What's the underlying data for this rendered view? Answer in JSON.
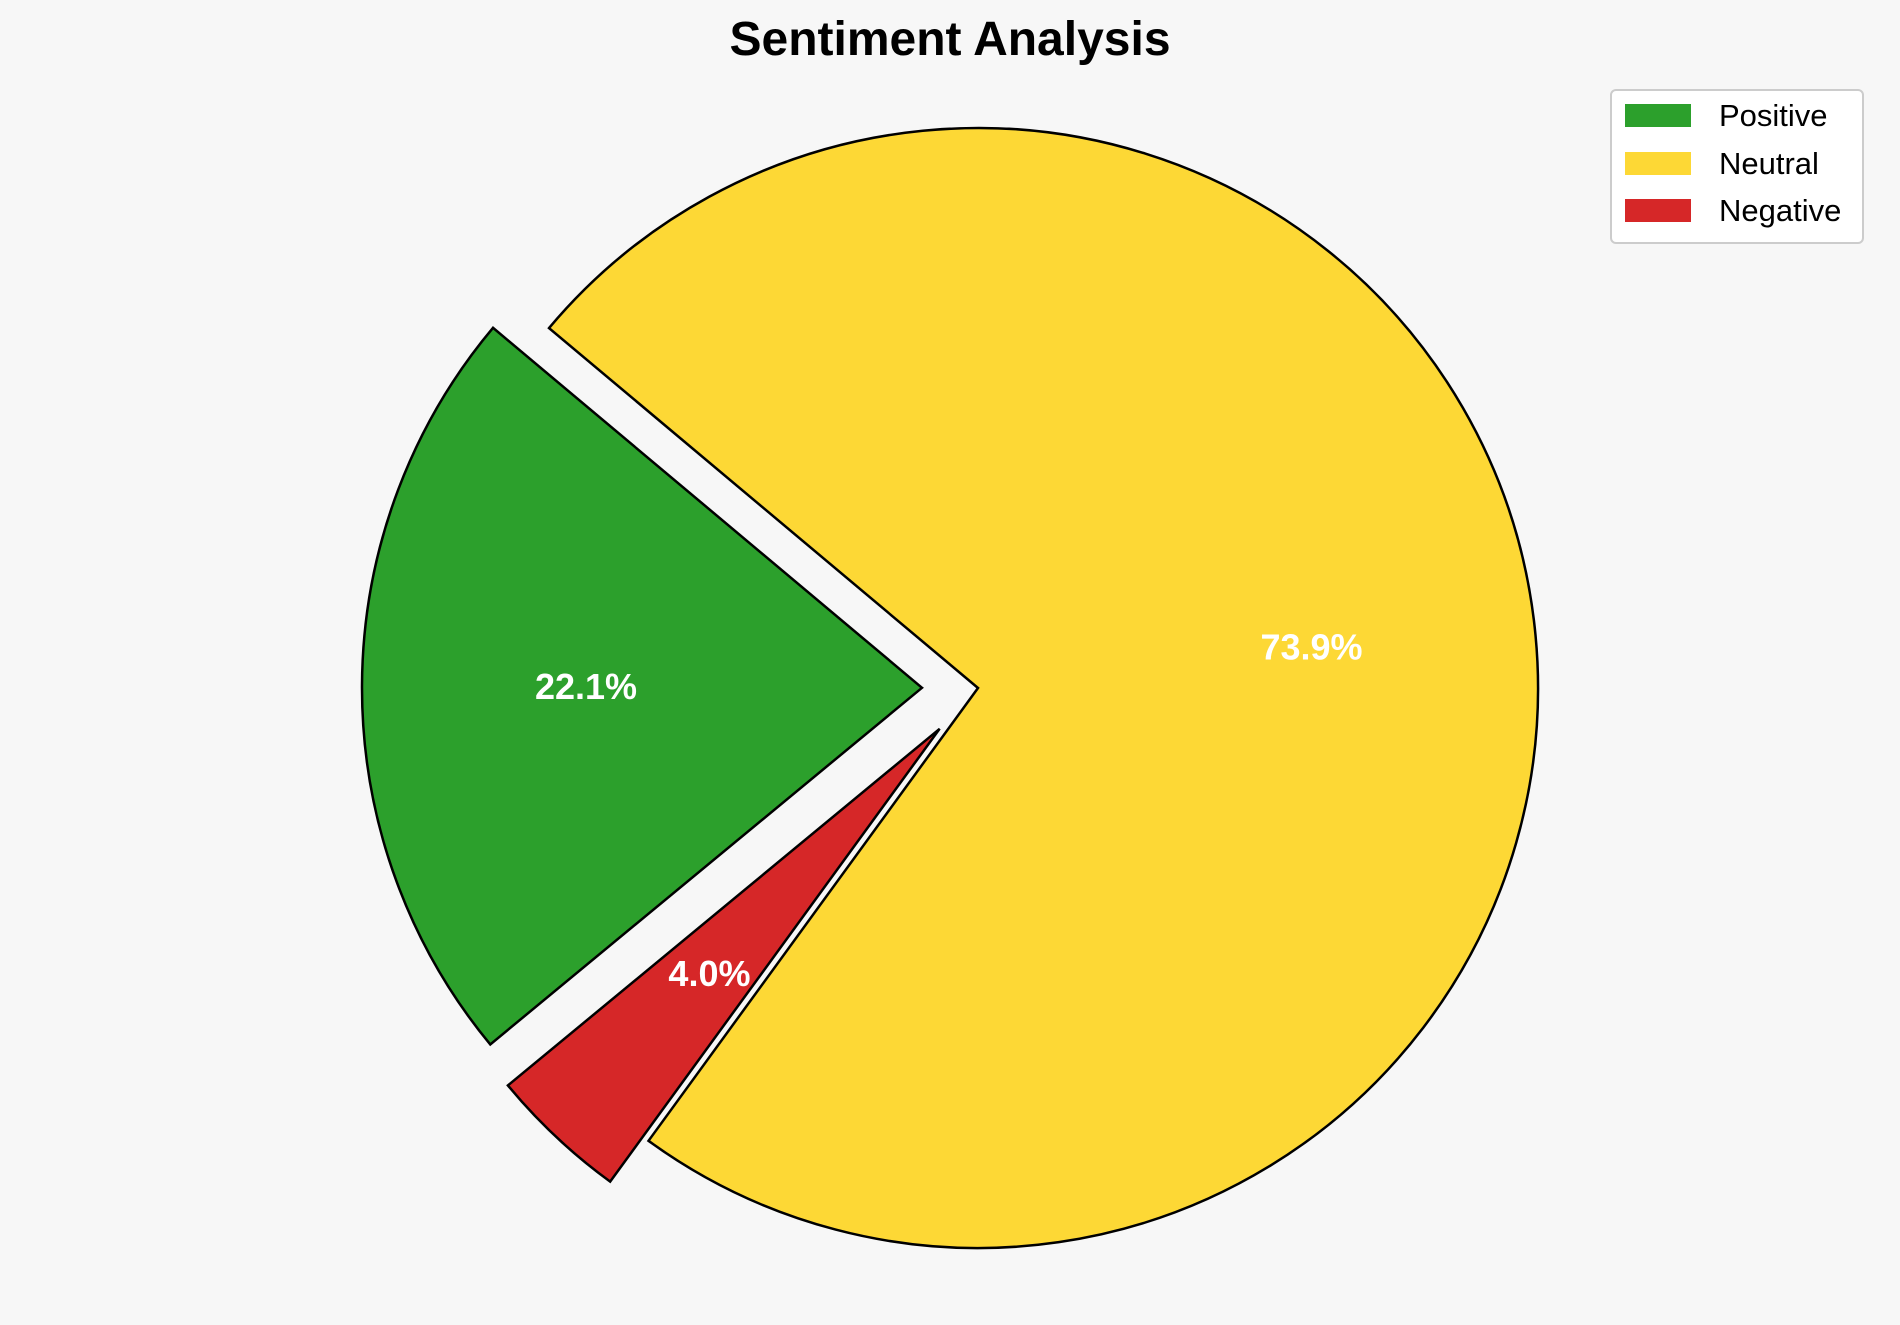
{
  "chart_data": {
    "type": "pie",
    "title": "Sentiment Analysis",
    "start_angle_deg": 140,
    "direction": "counterclockwise",
    "slices": [
      {
        "name": "Positive",
        "value": 22.1,
        "label": "22.1%",
        "color": "#2ca02c",
        "exploded": true
      },
      {
        "name": "Negative",
        "value": 4.0,
        "label": "4.0%",
        "color": "#d62728",
        "exploded": true
      },
      {
        "name": "Neutral",
        "value": 73.9,
        "label": "73.9%",
        "color": "#fdd835",
        "exploded": false
      }
    ],
    "legend": {
      "placement": "top-right",
      "entries": [
        {
          "name": "Positive",
          "color": "#2ca02c"
        },
        {
          "name": "Neutral",
          "color": "#fdd835"
        },
        {
          "name": "Negative",
          "color": "#d62728"
        }
      ]
    },
    "background_color": "#f7f7f7"
  }
}
